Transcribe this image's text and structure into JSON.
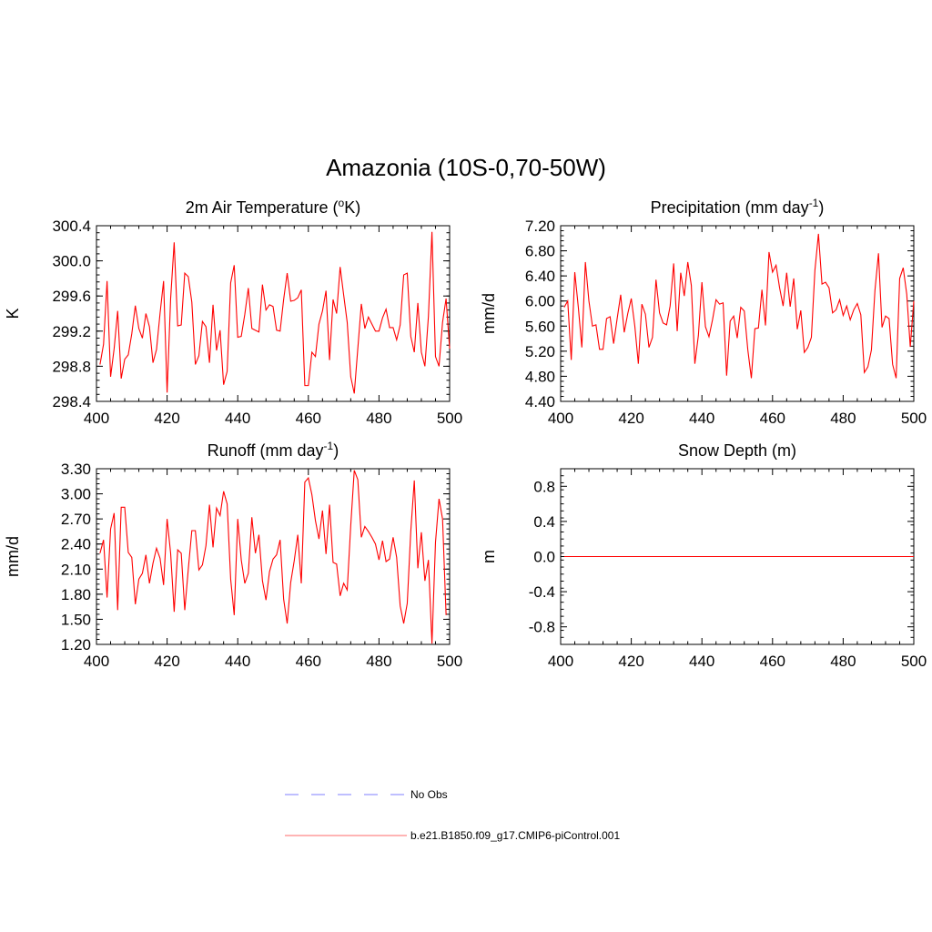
{
  "figure": {
    "title": "Amazonia (10S-0,70-50W)"
  },
  "legend": {
    "entries": [
      {
        "label": "No Obs",
        "color": "#9999ff",
        "dash": "dashed"
      },
      {
        "label": "b.e21.B1850.f09_g17.CMIP6-piControl.001",
        "color": "#ff8888",
        "dash": "solid"
      }
    ]
  },
  "colors": {
    "series": "#ff0000",
    "axis": "#000000"
  },
  "chart_data": [
    {
      "id": "temperature",
      "type": "line",
      "title": "2m Air Temperature (",
      "title_sup": "o",
      "title_tail": "K)",
      "ylabel": "K",
      "xlim": [
        400,
        500
      ],
      "ylim": [
        298.4,
        300.4
      ],
      "xticks": [
        400,
        420,
        440,
        460,
        480,
        500
      ],
      "xtick_labels": [
        "400",
        "420",
        "440",
        "460",
        "480",
        "500"
      ],
      "yticks": [
        298.4,
        298.8,
        299.2,
        299.6,
        300.0,
        300.4
      ],
      "ytick_labels": [
        "298.4",
        "298.8",
        "299.2",
        "299.6",
        "300.0",
        "300.4"
      ],
      "x_start": 401,
      "values": [
        298.82,
        299.05,
        299.77,
        298.68,
        299.0,
        299.43,
        298.66,
        298.88,
        298.93,
        299.17,
        299.49,
        299.23,
        299.12,
        299.4,
        299.25,
        298.84,
        298.99,
        299.4,
        299.77,
        298.5,
        299.57,
        300.21,
        299.26,
        299.27,
        299.86,
        299.82,
        299.53,
        298.82,
        298.92,
        299.31,
        299.25,
        298.84,
        299.5,
        298.98,
        299.21,
        298.59,
        298.74,
        299.75,
        299.95,
        299.13,
        299.14,
        299.39,
        299.69,
        299.23,
        299.21,
        299.19,
        299.73,
        299.44,
        299.5,
        299.48,
        299.21,
        299.2,
        299.56,
        299.86,
        299.54,
        299.55,
        299.58,
        299.67,
        298.58,
        298.58,
        298.96,
        298.91,
        299.28,
        299.43,
        299.66,
        298.87,
        299.56,
        299.4,
        299.93,
        299.61,
        299.3,
        298.68,
        298.49,
        299.0,
        299.51,
        299.23,
        299.36,
        299.28,
        299.2,
        299.2,
        299.35,
        299.45,
        299.24,
        299.24,
        299.1,
        299.27,
        299.84,
        299.86,
        299.14,
        298.96,
        299.52,
        298.96,
        298.8,
        299.37,
        300.33,
        298.91,
        298.8,
        299.3,
        299.57,
        299.0
      ]
    },
    {
      "id": "precipitation",
      "type": "line",
      "title": "Precipitation (mm day",
      "title_sup": "-1",
      "title_tail": ")",
      "ylabel": "mm/d",
      "xlim": [
        400,
        500
      ],
      "ylim": [
        4.4,
        7.2
      ],
      "xticks": [
        400,
        420,
        440,
        460,
        480,
        500
      ],
      "xtick_labels": [
        "400",
        "420",
        "440",
        "460",
        "480",
        "500"
      ],
      "yticks": [
        4.4,
        4.8,
        5.2,
        5.6,
        6.0,
        6.4,
        6.8,
        7.2
      ],
      "ytick_labels": [
        "4.40",
        "4.80",
        "5.20",
        "5.60",
        "6.00",
        "6.40",
        "6.80",
        "7.20"
      ],
      "x_start": 401,
      "values": [
        5.9,
        6.0,
        5.06,
        6.46,
        5.9,
        5.26,
        6.62,
        6.0,
        5.6,
        5.62,
        5.23,
        5.23,
        5.72,
        5.75,
        5.32,
        5.72,
        6.1,
        5.5,
        5.8,
        6.04,
        5.6,
        5.0,
        5.95,
        5.79,
        5.26,
        5.42,
        6.34,
        5.81,
        5.65,
        5.62,
        5.92,
        6.6,
        5.52,
        6.45,
        6.08,
        6.62,
        6.25,
        5.0,
        5.45,
        6.3,
        5.59,
        5.43,
        5.7,
        6.02,
        5.95,
        5.97,
        4.81,
        5.68,
        5.76,
        5.41,
        5.9,
        5.84,
        5.22,
        4.77,
        5.56,
        5.57,
        6.18,
        5.61,
        6.78,
        6.46,
        6.57,
        6.21,
        5.92,
        6.45,
        5.91,
        6.36,
        5.55,
        5.85,
        5.18,
        5.26,
        5.42,
        6.49,
        7.07,
        6.27,
        6.3,
        6.21,
        5.81,
        5.86,
        6.02,
        5.77,
        5.92,
        5.7,
        5.86,
        5.96,
        5.78,
        4.86,
        4.95,
        5.22,
        6.17,
        6.76,
        5.58,
        5.76,
        5.72,
        4.99,
        4.77,
        6.36,
        6.53,
        6.11,
        5.27,
        6.0
      ]
    },
    {
      "id": "runoff",
      "type": "line",
      "title": "Runoff (mm day",
      "title_sup": "-1",
      "title_tail": ")",
      "ylabel": "mm/d",
      "xlim": [
        400,
        500
      ],
      "ylim": [
        1.2,
        3.3
      ],
      "xticks": [
        400,
        420,
        440,
        460,
        480,
        500
      ],
      "xtick_labels": [
        "400",
        "420",
        "440",
        "460",
        "480",
        "500"
      ],
      "yticks": [
        1.2,
        1.5,
        1.8,
        2.1,
        2.4,
        2.7,
        3.0,
        3.3
      ],
      "ytick_labels": [
        "1.20",
        "1.50",
        "1.80",
        "2.10",
        "2.40",
        "2.70",
        "3.00",
        "3.30"
      ],
      "x_start": 401,
      "values": [
        2.29,
        2.45,
        1.76,
        2.58,
        2.77,
        1.61,
        2.84,
        2.84,
        2.3,
        2.24,
        1.68,
        1.98,
        2.05,
        2.27,
        1.93,
        2.17,
        2.35,
        2.23,
        1.91,
        2.7,
        2.29,
        1.59,
        2.33,
        2.29,
        1.61,
        2.1,
        2.56,
        2.56,
        2.09,
        2.15,
        2.38,
        2.87,
        2.36,
        2.83,
        2.74,
        3.03,
        2.88,
        1.98,
        1.55,
        2.7,
        2.21,
        1.93,
        2.05,
        2.72,
        2.29,
        2.51,
        1.96,
        1.73,
        2.07,
        2.22,
        2.27,
        2.45,
        1.74,
        1.45,
        1.94,
        2.2,
        2.51,
        1.93,
        3.14,
        3.19,
        2.99,
        2.68,
        2.46,
        2.8,
        2.28,
        2.87,
        2.18,
        2.16,
        1.78,
        1.93,
        1.85,
        2.62,
        3.28,
        3.17,
        2.48,
        2.61,
        2.55,
        2.48,
        2.4,
        2.21,
        2.44,
        2.19,
        2.22,
        2.48,
        2.24,
        1.66,
        1.45,
        1.69,
        2.55,
        3.16,
        2.11,
        2.54,
        1.96,
        2.21,
        1.21,
        2.42,
        2.94,
        2.7,
        1.55
      ]
    },
    {
      "id": "snow",
      "type": "line",
      "title": "Snow Depth (m)",
      "title_sup": "",
      "title_tail": "",
      "ylabel": "m",
      "xlim": [
        400,
        500
      ],
      "ylim": [
        -1.0,
        1.0
      ],
      "xticks": [
        400,
        420,
        440,
        460,
        480,
        500
      ],
      "xtick_labels": [
        "400",
        "420",
        "440",
        "460",
        "480",
        "500"
      ],
      "yticks": [
        -0.8,
        -0.4,
        0.0,
        0.4,
        0.8
      ],
      "ytick_labels": [
        "-0.8",
        "-0.4",
        "0.0",
        "0.4",
        "0.8"
      ],
      "x_start": 401,
      "values": [
        0,
        0,
        0,
        0,
        0,
        0,
        0,
        0,
        0,
        0,
        0,
        0,
        0,
        0,
        0,
        0,
        0,
        0,
        0,
        0,
        0,
        0,
        0,
        0,
        0,
        0,
        0,
        0,
        0,
        0,
        0,
        0,
        0,
        0,
        0,
        0,
        0,
        0,
        0,
        0,
        0,
        0,
        0,
        0,
        0,
        0,
        0,
        0,
        0,
        0,
        0,
        0,
        0,
        0,
        0,
        0,
        0,
        0,
        0,
        0,
        0,
        0,
        0,
        0,
        0,
        0,
        0,
        0,
        0,
        0,
        0,
        0,
        0,
        0,
        0,
        0,
        0,
        0,
        0,
        0,
        0,
        0,
        0,
        0,
        0,
        0,
        0,
        0,
        0,
        0,
        0,
        0,
        0,
        0,
        0,
        0,
        0,
        0,
        0,
        0
      ]
    }
  ]
}
